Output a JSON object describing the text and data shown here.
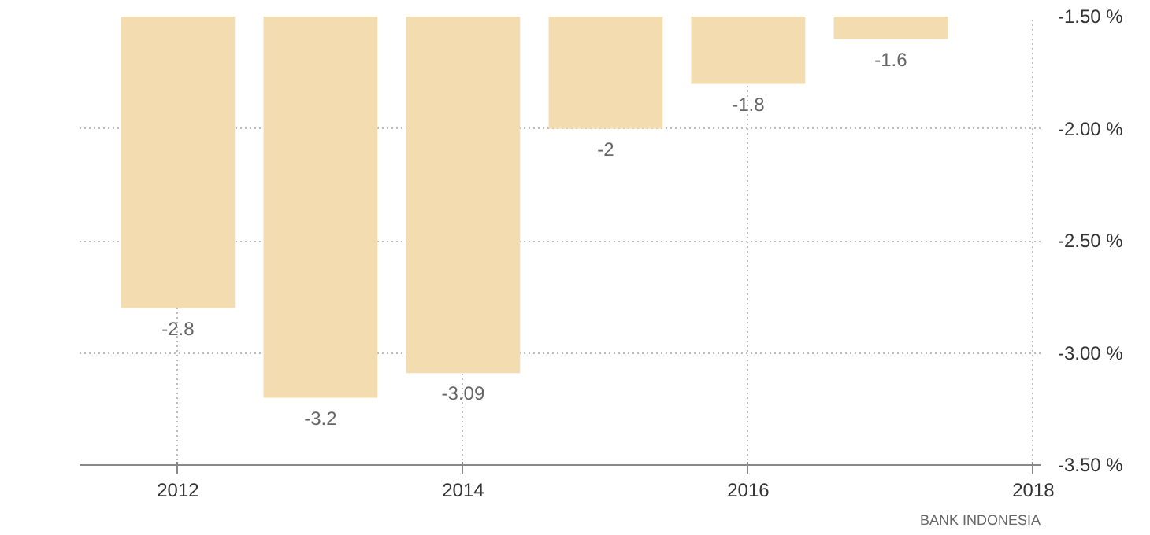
{
  "chart_data": {
    "type": "bar",
    "x": [
      2012,
      2013,
      2014,
      2015,
      2016,
      2017
    ],
    "values": [
      -2.8,
      -3.2,
      -3.09,
      -2,
      -1.8,
      -1.6
    ],
    "color": "#f4dcb1",
    "data_labels": true,
    "xlim": [
      2011.31,
      2018.05
    ],
    "xticks": [
      2012,
      2014,
      2016,
      2018
    ],
    "ylim": [
      -3.5,
      -1.5
    ],
    "yticks": [
      {
        "value": -1.5,
        "label": "-1.50 %"
      },
      {
        "value": -2.0,
        "label": "-2.00 %"
      },
      {
        "value": -2.5,
        "label": "-2.50 %"
      },
      {
        "value": -3.0,
        "label": "-3.00 %"
      },
      {
        "value": -3.5,
        "label": "-3.50 %"
      }
    ],
    "grid": true,
    "annotations": [
      "BANK INDONESIA"
    ]
  }
}
